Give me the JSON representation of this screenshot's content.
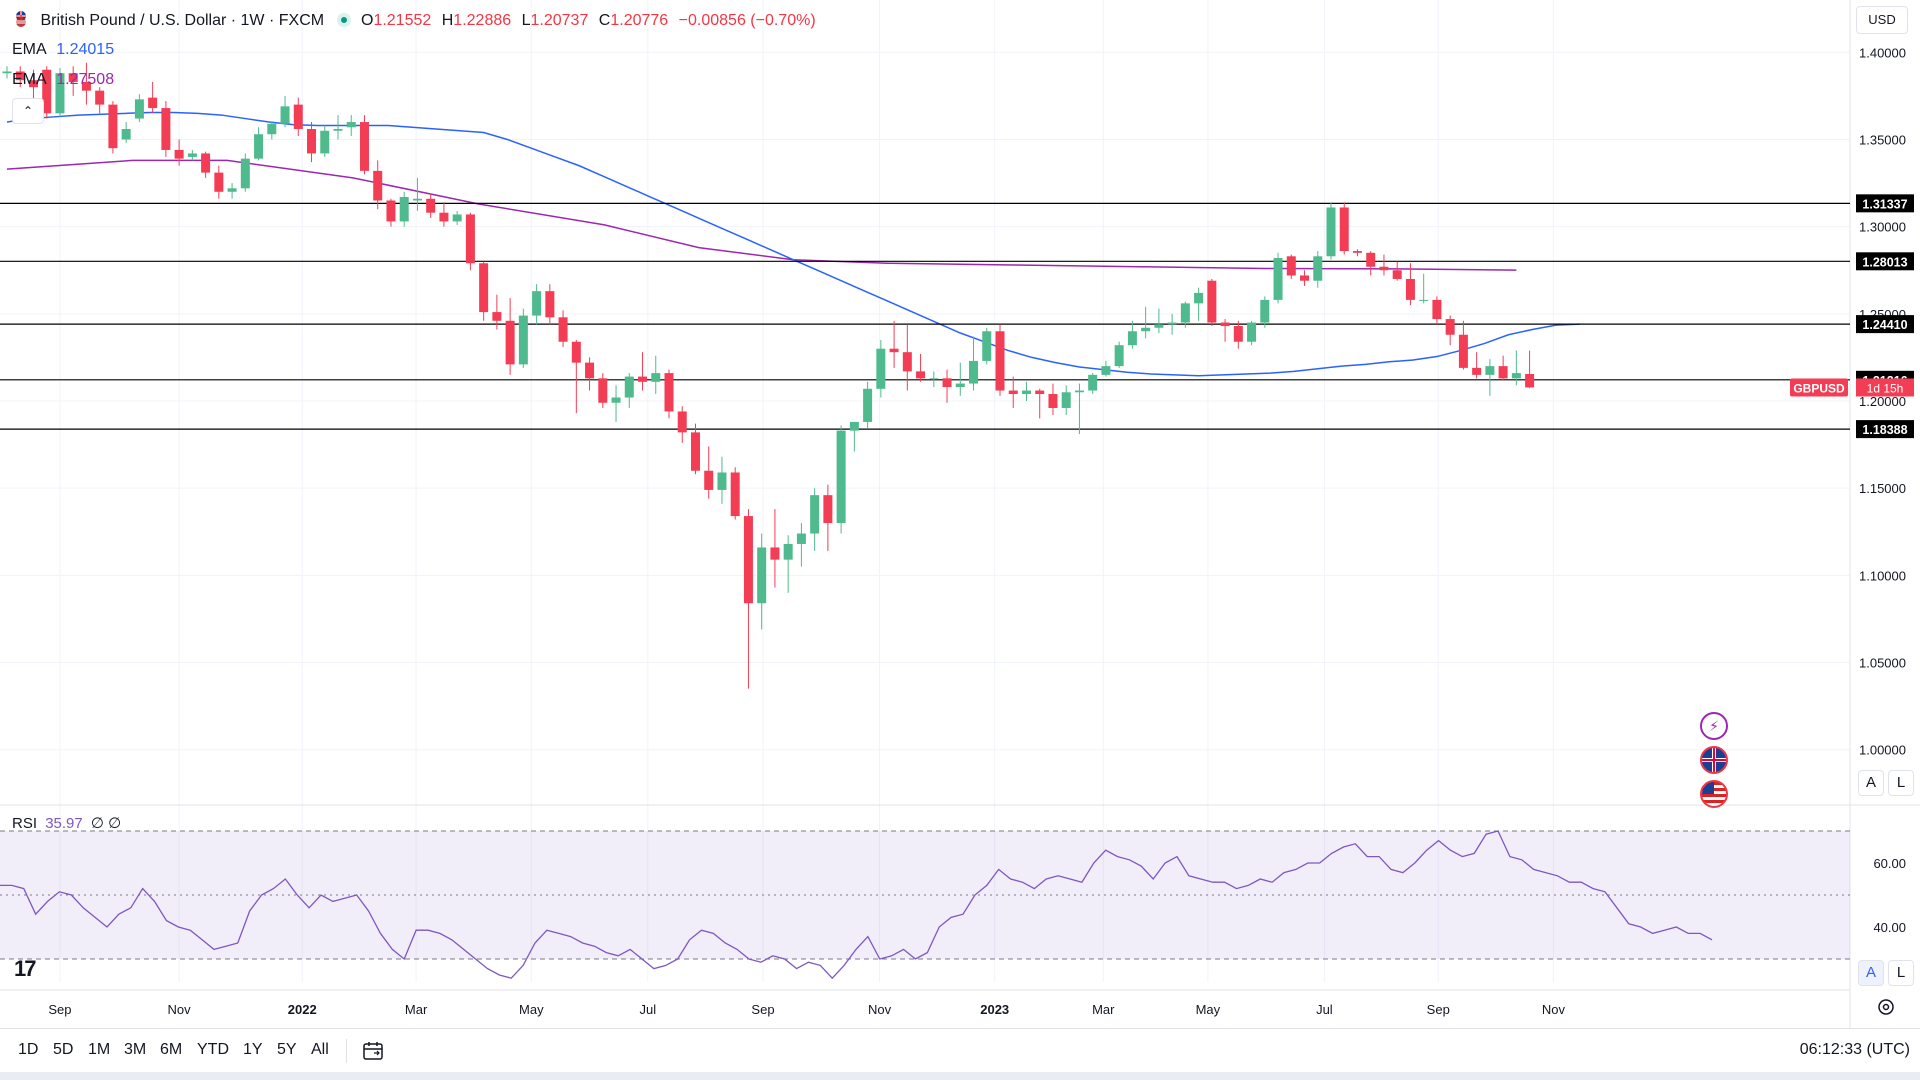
{
  "header": {
    "symbol_title": "British Pound / U.S. Dollar · 1W · FXCM",
    "ohlc": {
      "o_label": "O",
      "o": "1.21552",
      "h_label": "H",
      "h": "1.22886",
      "l_label": "L",
      "l": "1.20737",
      "c_label": "C",
      "c": "1.20776",
      "change": "−0.00856 (−0.70%)"
    },
    "ema1": {
      "label": "EMA",
      "value": "1.24015",
      "color": "#2962ff"
    },
    "ema2": {
      "label": "EMA",
      "value": "1.27508",
      "color": "#9c27b0"
    }
  },
  "toolbar": {
    "currency": "USD",
    "ranges": [
      "1D",
      "5D",
      "1M",
      "3M",
      "6M",
      "YTD",
      "1Y",
      "5Y",
      "All"
    ],
    "clock": "06:12:33 (UTC)",
    "scale_auto": "A",
    "scale_log": "L"
  },
  "rsi": {
    "label": "RSI",
    "value": "35.97",
    "extra": "∅ ∅"
  },
  "logo": "17",
  "chart_data": {
    "type": "candlestick",
    "symbol": "GBPUSD",
    "timeframe": "1W",
    "ylim": [
      0.97,
      1.43
    ],
    "yticks": [
      1.0,
      1.05,
      1.1,
      1.15,
      1.2,
      1.25,
      1.3,
      1.35,
      1.4
    ],
    "ytick_labels": [
      "1.00000",
      "1.05000",
      "1.10000",
      "1.15000",
      "1.20000",
      "1.25000",
      "1.30000",
      "1.35000",
      "1.40000"
    ],
    "x_labels": [
      "Sep",
      "Nov",
      "2022",
      "Mar",
      "May",
      "Jul",
      "Sep",
      "Nov",
      "2023",
      "Mar",
      "May",
      "Jul",
      "Sep",
      "Nov"
    ],
    "x_label_weeks": [
      4.0,
      13.0,
      22.3,
      30.9,
      39.6,
      48.4,
      57.1,
      65.9,
      74.6,
      82.8,
      90.7,
      99.5,
      108.1,
      116.8
    ],
    "colors": {
      "up": "#4fba8d",
      "down": "#f23d54",
      "ema1": "#2962ff",
      "ema2": "#9c27b0",
      "hline": "#000000"
    },
    "horizontal_levels": [
      {
        "value": 1.31337,
        "label": "1.31337"
      },
      {
        "value": 1.28013,
        "label": "1.28013"
      },
      {
        "value": 1.2441,
        "label": "1.24410"
      },
      {
        "value": 1.21216,
        "label": "1.21216"
      },
      {
        "value": 1.18388,
        "label": "1.18388"
      }
    ],
    "last_price_label": {
      "symbol": "GBPUSD",
      "countdown": "1d 15h",
      "value": 1.20776
    },
    "candles": [
      [
        1.388,
        1.392,
        1.385,
        1.389
      ],
      [
        1.389,
        1.392,
        1.38,
        1.384
      ],
      [
        1.384,
        1.39,
        1.372,
        1.38
      ],
      [
        1.39,
        1.392,
        1.362,
        1.365
      ],
      [
        1.365,
        1.391,
        1.363,
        1.388
      ],
      [
        1.388,
        1.392,
        1.375,
        1.383
      ],
      [
        1.383,
        1.394,
        1.37,
        1.378
      ],
      [
        1.378,
        1.38,
        1.365,
        1.37
      ],
      [
        1.37,
        1.372,
        1.342,
        1.345
      ],
      [
        1.35,
        1.36,
        1.348,
        1.356
      ],
      [
        1.362,
        1.376,
        1.36,
        1.373
      ],
      [
        1.374,
        1.383,
        1.365,
        1.368
      ],
      [
        1.368,
        1.372,
        1.34,
        1.344
      ],
      [
        1.344,
        1.35,
        1.335,
        1.339
      ],
      [
        1.34,
        1.344,
        1.338,
        1.342
      ],
      [
        1.342,
        1.343,
        1.328,
        1.331
      ],
      [
        1.331,
        1.335,
        1.316,
        1.32
      ],
      [
        1.32,
        1.325,
        1.316,
        1.322
      ],
      [
        1.322,
        1.342,
        1.32,
        1.339
      ],
      [
        1.339,
        1.357,
        1.338,
        1.353
      ],
      [
        1.353,
        1.36,
        1.35,
        1.359
      ],
      [
        1.359,
        1.375,
        1.357,
        1.369
      ],
      [
        1.37,
        1.374,
        1.352,
        1.356
      ],
      [
        1.356,
        1.36,
        1.337,
        1.342
      ],
      [
        1.342,
        1.358,
        1.34,
        1.355
      ],
      [
        1.355,
        1.364,
        1.35,
        1.356
      ],
      [
        1.357,
        1.364,
        1.352,
        1.36
      ],
      [
        1.36,
        1.364,
        1.33,
        1.332
      ],
      [
        1.332,
        1.338,
        1.31,
        1.315
      ],
      [
        1.315,
        1.316,
        1.3,
        1.303
      ],
      [
        1.303,
        1.32,
        1.3,
        1.317
      ],
      [
        1.315,
        1.328,
        1.309,
        1.316
      ],
      [
        1.316,
        1.319,
        1.305,
        1.308
      ],
      [
        1.308,
        1.314,
        1.3,
        1.303
      ],
      [
        1.303,
        1.309,
        1.301,
        1.307
      ],
      [
        1.307,
        1.308,
        1.275,
        1.279
      ],
      [
        1.279,
        1.28,
        1.246,
        1.251
      ],
      [
        1.251,
        1.261,
        1.241,
        1.246
      ],
      [
        1.246,
        1.259,
        1.215,
        1.221
      ],
      [
        1.221,
        1.253,
        1.219,
        1.249
      ],
      [
        1.249,
        1.267,
        1.244,
        1.263
      ],
      [
        1.263,
        1.267,
        1.244,
        1.248
      ],
      [
        1.248,
        1.252,
        1.231,
        1.234
      ],
      [
        1.234,
        1.235,
        1.193,
        1.222
      ],
      [
        1.222,
        1.225,
        1.206,
        1.213
      ],
      [
        1.213,
        1.216,
        1.196,
        1.199
      ],
      [
        1.199,
        1.209,
        1.188,
        1.202
      ],
      [
        1.202,
        1.216,
        1.196,
        1.214
      ],
      [
        1.214,
        1.228,
        1.206,
        1.211
      ],
      [
        1.211,
        1.226,
        1.204,
        1.216
      ],
      [
        1.216,
        1.218,
        1.19,
        1.194
      ],
      [
        1.194,
        1.197,
        1.176,
        1.182
      ],
      [
        1.182,
        1.187,
        1.158,
        1.16
      ],
      [
        1.16,
        1.174,
        1.144,
        1.149
      ],
      [
        1.149,
        1.168,
        1.141,
        1.159
      ],
      [
        1.159,
        1.162,
        1.132,
        1.134
      ],
      [
        1.134,
        1.138,
        1.035,
        1.084
      ],
      [
        1.084,
        1.124,
        1.069,
        1.116
      ],
      [
        1.116,
        1.138,
        1.093,
        1.109
      ],
      [
        1.109,
        1.123,
        1.09,
        1.118
      ],
      [
        1.118,
        1.13,
        1.105,
        1.124
      ],
      [
        1.124,
        1.15,
        1.114,
        1.146
      ],
      [
        1.146,
        1.152,
        1.114,
        1.13
      ],
      [
        1.13,
        1.186,
        1.124,
        1.183
      ],
      [
        1.183,
        1.186,
        1.171,
        1.188
      ],
      [
        1.188,
        1.211,
        1.184,
        1.207
      ],
      [
        1.207,
        1.235,
        1.202,
        1.23
      ],
      [
        1.23,
        1.246,
        1.219,
        1.228
      ],
      [
        1.228,
        1.244,
        1.206,
        1.217
      ],
      [
        1.217,
        1.227,
        1.211,
        1.213
      ],
      [
        1.213,
        1.217,
        1.208,
        1.213
      ],
      [
        1.213,
        1.218,
        1.199,
        1.208
      ],
      [
        1.208,
        1.222,
        1.203,
        1.21
      ],
      [
        1.21,
        1.237,
        1.206,
        1.223
      ],
      [
        1.223,
        1.242,
        1.221,
        1.24
      ],
      [
        1.24,
        1.244,
        1.203,
        1.206
      ],
      [
        1.206,
        1.214,
        1.196,
        1.204
      ],
      [
        1.204,
        1.211,
        1.2,
        1.206
      ],
      [
        1.206,
        1.207,
        1.19,
        1.204
      ],
      [
        1.204,
        1.21,
        1.192,
        1.196
      ],
      [
        1.196,
        1.209,
        1.192,
        1.205
      ],
      [
        1.205,
        1.21,
        1.181,
        1.206
      ],
      [
        1.206,
        1.216,
        1.204,
        1.215
      ],
      [
        1.215,
        1.223,
        1.214,
        1.22
      ],
      [
        1.22,
        1.234,
        1.219,
        1.232
      ],
      [
        1.232,
        1.246,
        1.23,
        1.24
      ],
      [
        1.24,
        1.254,
        1.236,
        1.242
      ],
      [
        1.242,
        1.253,
        1.239,
        1.244
      ],
      [
        1.244,
        1.25,
        1.238,
        1.245
      ],
      [
        1.245,
        1.257,
        1.242,
        1.256
      ],
      [
        1.256,
        1.265,
        1.246,
        1.262
      ],
      [
        1.269,
        1.27,
        1.243,
        1.245
      ],
      [
        1.245,
        1.247,
        1.234,
        1.243
      ],
      [
        1.243,
        1.246,
        1.23,
        1.234
      ],
      [
        1.234,
        1.246,
        1.232,
        1.245
      ],
      [
        1.245,
        1.26,
        1.242,
        1.258
      ],
      [
        1.258,
        1.285,
        1.256,
        1.282
      ],
      [
        1.283,
        1.284,
        1.27,
        1.272
      ],
      [
        1.272,
        1.275,
        1.266,
        1.269
      ],
      [
        1.269,
        1.286,
        1.265,
        1.283
      ],
      [
        1.283,
        1.314,
        1.281,
        1.311
      ],
      [
        1.311,
        1.314,
        1.284,
        1.286
      ],
      [
        1.286,
        1.287,
        1.283,
        1.285
      ],
      [
        1.285,
        1.286,
        1.272,
        1.277
      ],
      [
        1.277,
        1.284,
        1.272,
        1.275
      ],
      [
        1.275,
        1.28,
        1.269,
        1.27
      ],
      [
        1.27,
        1.279,
        1.255,
        1.258
      ],
      [
        1.258,
        1.273,
        1.256,
        1.258
      ],
      [
        1.258,
        1.26,
        1.244,
        1.247
      ],
      [
        1.247,
        1.249,
        1.232,
        1.238
      ],
      [
        1.238,
        1.246,
        1.218,
        1.219
      ],
      [
        1.219,
        1.228,
        1.213,
        1.215
      ],
      [
        1.215,
        1.224,
        1.203,
        1.22
      ],
      [
        1.22,
        1.226,
        1.212,
        1.213
      ],
      [
        1.213,
        1.229,
        1.209,
        1.216
      ],
      [
        1.2155,
        1.2289,
        1.2074,
        1.2078
      ]
    ],
    "ema_short": [
      1.36,
      1.362,
      1.363,
      1.364,
      1.3645,
      1.365,
      1.3655,
      1.3655,
      1.365,
      1.364,
      1.362,
      1.36,
      1.3585,
      1.358,
      1.358,
      1.358,
      1.358,
      1.357,
      1.356,
      1.355,
      1.354,
      1.35,
      1.345,
      1.34,
      1.335,
      1.329,
      1.323,
      1.317,
      1.311,
      1.305,
      1.299,
      1.293,
      1.287,
      1.281,
      1.275,
      1.269,
      1.263,
      1.257,
      1.251,
      1.245,
      1.239,
      1.234,
      1.229,
      1.225,
      1.222,
      1.2195,
      1.218,
      1.2165,
      1.2155,
      1.215,
      1.2145,
      1.215,
      1.2155,
      1.216,
      1.217,
      1.2185,
      1.22,
      1.221,
      1.2225,
      1.2235,
      1.2255,
      1.229,
      1.233,
      1.238,
      1.241,
      1.2435,
      1.2441
    ],
    "ema_short_start_week": 0,
    "ema_short_step": 1.8,
    "ema_long_points": [
      [
        0,
        1.333
      ],
      [
        20,
        1.338
      ],
      [
        35,
        1.338
      ],
      [
        55,
        1.328
      ],
      [
        75,
        1.313
      ],
      [
        95,
        1.301
      ],
      [
        110,
        1.288
      ],
      [
        125,
        1.281
      ],
      [
        140,
        1.279
      ],
      [
        160,
        1.278
      ],
      [
        180,
        1.277
      ],
      [
        200,
        1.276
      ],
      [
        220,
        1.2758
      ],
      [
        240,
        1.2751
      ]
    ],
    "rsi": {
      "ylim": [
        25,
        75
      ],
      "levels": [
        30,
        50,
        70
      ],
      "tick_labels": [
        "40.00",
        "60.00"
      ],
      "tick_values": [
        40,
        60
      ],
      "values": [
        53,
        53,
        52,
        44,
        48,
        51,
        50,
        46,
        43,
        40,
        44,
        46,
        52,
        48,
        42,
        40,
        39,
        36,
        33,
        34,
        35,
        45,
        50,
        52,
        55,
        50,
        46,
        50,
        48,
        49,
        50,
        45,
        38,
        33,
        30,
        39,
        39,
        38,
        36,
        33,
        30,
        27,
        25,
        24,
        28,
        35,
        39,
        38,
        37,
        35,
        34,
        32,
        31,
        33,
        30,
        27,
        28,
        30,
        36,
        39,
        38,
        35,
        33,
        30,
        29,
        31,
        30,
        27,
        29,
        28,
        24,
        28,
        33,
        37,
        30,
        31,
        33,
        30,
        32,
        40,
        43,
        44,
        50,
        53,
        58,
        55,
        54,
        52,
        55,
        56,
        55,
        54,
        60,
        64,
        62,
        61,
        59,
        55,
        60,
        62,
        56,
        55,
        54,
        54,
        52,
        53,
        55,
        54,
        57,
        58,
        60,
        60,
        63,
        65,
        66,
        62,
        62,
        58,
        57,
        60,
        64,
        67,
        64,
        62,
        63,
        69,
        70,
        62,
        61,
        58,
        57,
        56,
        54,
        54,
        52,
        51,
        46,
        41,
        40,
        38,
        39,
        40,
        38,
        38,
        36
      ]
    }
  }
}
